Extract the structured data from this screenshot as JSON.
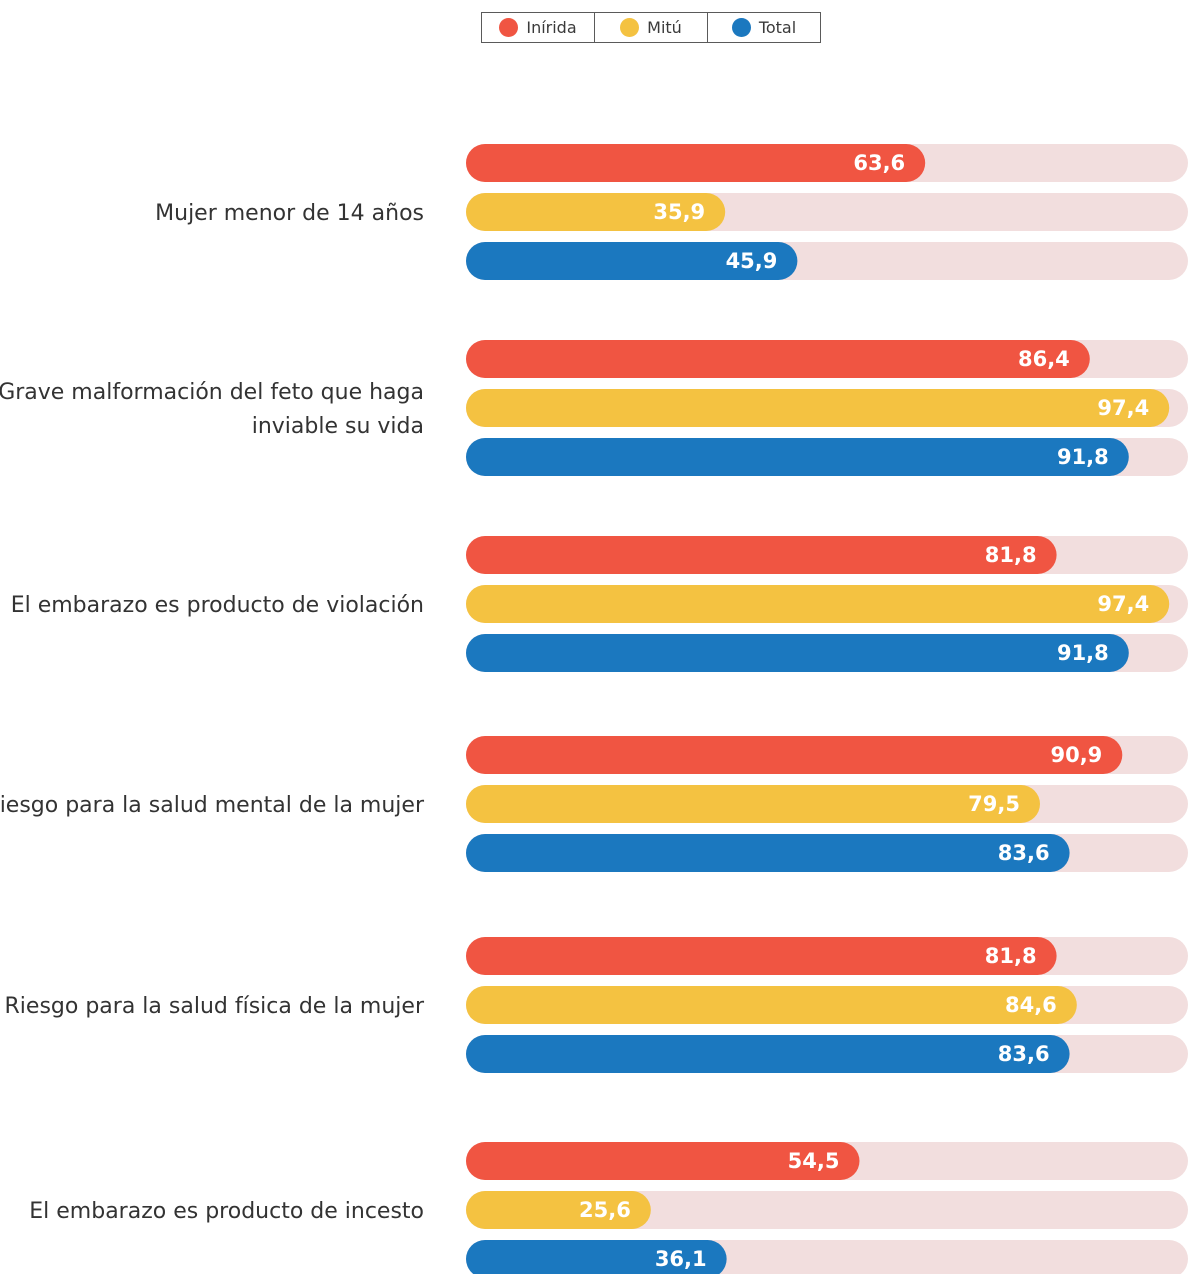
{
  "chart_data": {
    "type": "bar",
    "orientation": "horizontal",
    "categories": [
      "Mujer menor de 14 años",
      "Grave malformación del feto que haga inviable su vida",
      "El embarazo es producto de violación",
      "Riesgo para la salud mental de la mujer",
      "Riesgo para la salud física de la mujer",
      "El embarazo es producto de incesto"
    ],
    "series": [
      {
        "name": "Inírida",
        "color": "#F05542",
        "values": [
          63.6,
          86.4,
          81.8,
          90.9,
          81.8,
          54.5
        ],
        "labels": [
          "63,6",
          "86,4",
          "81,8",
          "90,9",
          "81,8",
          "54,5"
        ]
      },
      {
        "name": "Mitú",
        "color": "#F4C241",
        "values": [
          35.9,
          97.4,
          97.4,
          79.5,
          84.6,
          25.6
        ],
        "labels": [
          "35,9",
          "97,4",
          "97,4",
          "79,5",
          "84,6",
          "25,6"
        ]
      },
      {
        "name": "Total",
        "color": "#1B78BF",
        "values": [
          45.9,
          91.8,
          91.8,
          83.6,
          83.6,
          36.1
        ],
        "labels": [
          "45,9",
          "91,8",
          "91,8",
          "83,6",
          "83,6",
          "36,1"
        ]
      }
    ],
    "xlim": [
      0,
      100
    ],
    "track_color": "#F2DEDE",
    "legend": "top-center",
    "grid": false
  }
}
